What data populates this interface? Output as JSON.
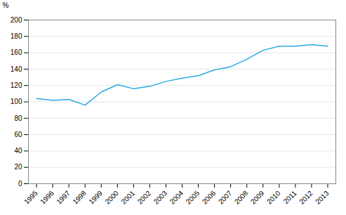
{
  "chart_data": {
    "type": "line",
    "ylabel": "%",
    "x": [
      1995,
      1996,
      1997,
      1998,
      1999,
      2000,
      2001,
      2002,
      2003,
      2004,
      2005,
      2006,
      2007,
      2008,
      2009,
      2010,
      2011,
      2012,
      2013
    ],
    "values": [
      104,
      102,
      103,
      96,
      112,
      121,
      116,
      119,
      125,
      129,
      132,
      139,
      143,
      152,
      163,
      168,
      168,
      170,
      168
    ],
    "color": "#29abe2",
    "xlim": [
      1994.5,
      2013.5
    ],
    "xticks": [
      1995,
      1996,
      1997,
      1998,
      1999,
      2000,
      2001,
      2002,
      2003,
      2004,
      2005,
      2006,
      2007,
      2008,
      2009,
      2010,
      2011,
      2012,
      2013
    ],
    "ylim": [
      0,
      200
    ],
    "yticks": [
      0,
      20,
      40,
      60,
      80,
      100,
      120,
      140,
      160,
      180,
      200
    ],
    "grid": "y"
  }
}
